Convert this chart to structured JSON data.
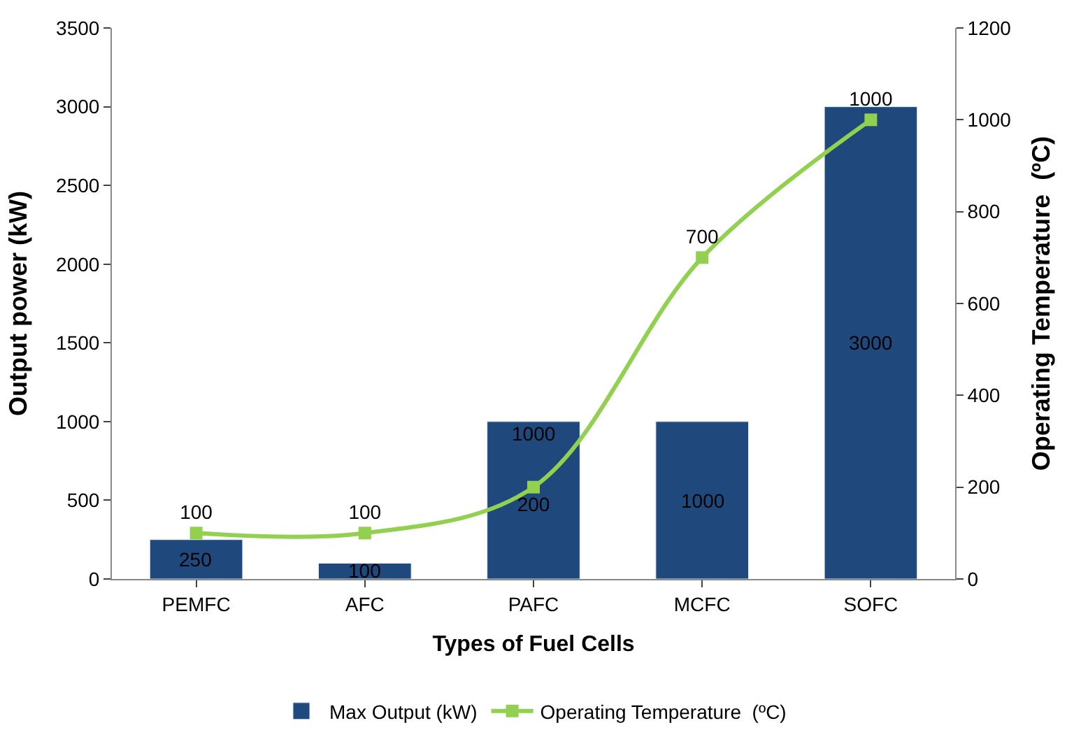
{
  "chart_data": {
    "type": "bar",
    "xlabel": "Types of Fuel Cells",
    "ylabel": "Output power (kW)",
    "y2label": "Operating Temperature  (ºC)",
    "categories": [
      "PEMFC",
      "AFC",
      "PAFC",
      "MCFC",
      "SOFC"
    ],
    "series": [
      {
        "name": "Max Output (kW)",
        "color": "#1f497d",
        "values": [
          250,
          100,
          1000,
          1000,
          3000
        ]
      },
      {
        "name": "Operating Temperature  (ºC)",
        "type": "line",
        "axis": "y2",
        "color": "#92d050",
        "marker": "square",
        "values": [
          100,
          100,
          200,
          700,
          1000
        ]
      }
    ],
    "ylim": [
      0,
      3500
    ],
    "yticks": [
      0,
      500,
      1000,
      1500,
      2000,
      2500,
      3000,
      3500
    ],
    "y2lim": [
      0,
      1200
    ],
    "y2ticks": [
      0,
      200,
      400,
      600,
      800,
      1000,
      1200
    ],
    "data_labels": true,
    "legend": "bottom"
  }
}
